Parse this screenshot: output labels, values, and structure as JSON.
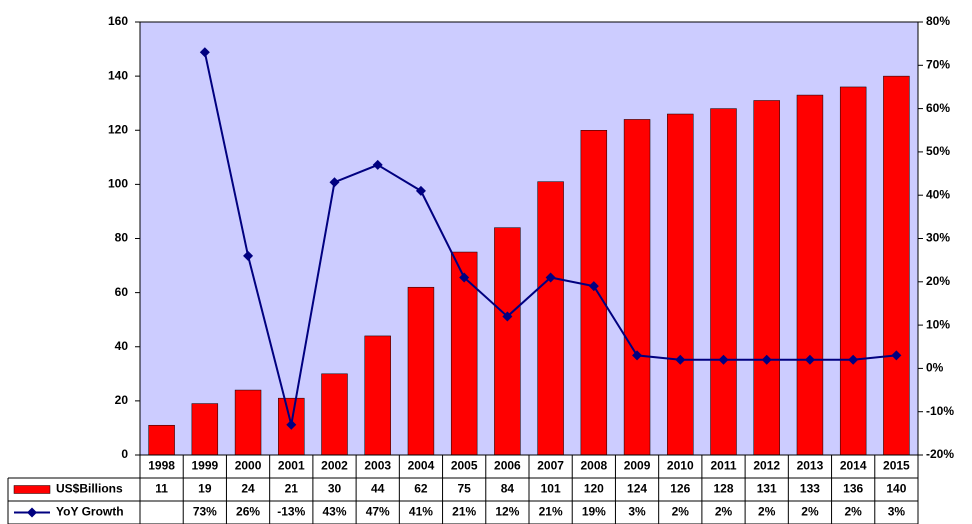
{
  "chart_data": {
    "type": "bar",
    "categories": [
      "1998",
      "1999",
      "2000",
      "2001",
      "2002",
      "2003",
      "2004",
      "2005",
      "2006",
      "2007",
      "2008",
      "2009",
      "2010",
      "2011",
      "2012",
      "2013",
      "2014",
      "2015"
    ],
    "series": [
      {
        "name": "US$Billions",
        "type": "bar",
        "color": "#ff0000",
        "values": [
          11,
          19,
          24,
          21,
          30,
          44,
          62,
          75,
          84,
          101,
          120,
          124,
          126,
          128,
          131,
          133,
          136,
          140
        ]
      },
      {
        "name": "YoY Growth",
        "type": "line",
        "axis": "y2",
        "color": "#000080",
        "values": [
          null,
          73,
          26,
          -13,
          43,
          47,
          41,
          21,
          12,
          21,
          19,
          3,
          2,
          2,
          2,
          2,
          2,
          3
        ],
        "value_labels": [
          null,
          "73%",
          "26%",
          "-13%",
          "43%",
          "47%",
          "41%",
          "21%",
          "12%",
          "21%",
          "19%",
          "3%",
          "2%",
          "2%",
          "2%",
          "2%",
          "2%",
          "3%"
        ]
      }
    ],
    "ylim": [
      0,
      160
    ],
    "yticks": [
      0,
      20,
      40,
      60,
      80,
      100,
      120,
      140,
      160
    ],
    "y2lim": [
      -20,
      80
    ],
    "y2ticks": [
      {
        "value": -20,
        "label": "-20%"
      },
      {
        "value": -10,
        "label": "-10%"
      },
      {
        "value": 0,
        "label": "0%"
      },
      {
        "value": 10,
        "label": "10%"
      },
      {
        "value": 20,
        "label": "20%"
      },
      {
        "value": 30,
        "label": "30%"
      },
      {
        "value": 40,
        "label": "40%"
      },
      {
        "value": 50,
        "label": "50%"
      },
      {
        "value": 60,
        "label": "60%"
      },
      {
        "value": 70,
        "label": "70%"
      },
      {
        "value": 80,
        "label": "80%"
      }
    ],
    "plot_background": "#ccccff"
  }
}
